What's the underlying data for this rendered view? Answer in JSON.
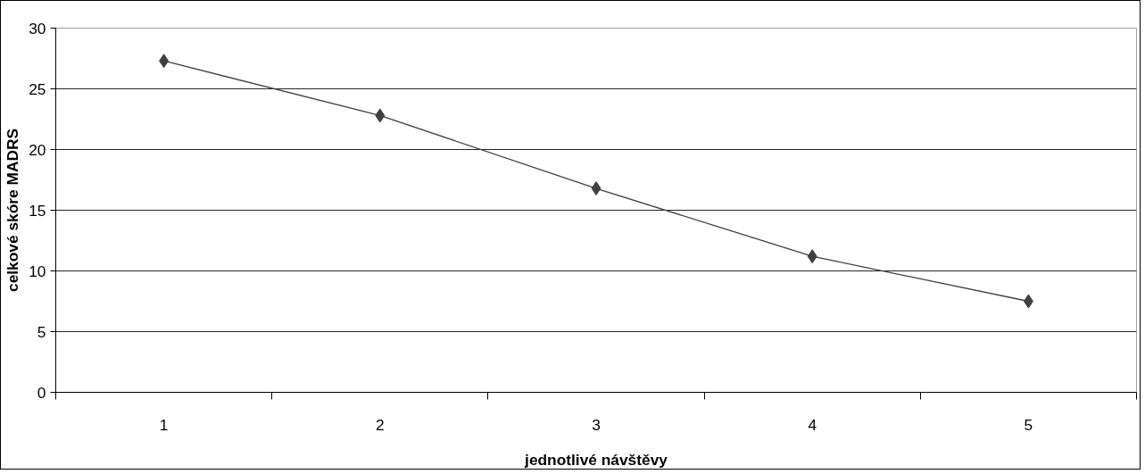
{
  "chart_data": {
    "type": "line",
    "xlabel": "jednotlivé návštěvy",
    "ylabel": "celkové skóre MADRS",
    "categories": [
      "1",
      "2",
      "3",
      "4",
      "5"
    ],
    "series": [
      {
        "color": "#404040",
        "values": [
          27.3,
          22.8,
          16.8,
          11.2,
          7.5
        ]
      }
    ],
    "ylim": [
      0,
      30
    ],
    "yticks": [
      0,
      5,
      10,
      15,
      20,
      25,
      30
    ],
    "grid": "y",
    "marker": "diamond",
    "line_style": "solid"
  }
}
